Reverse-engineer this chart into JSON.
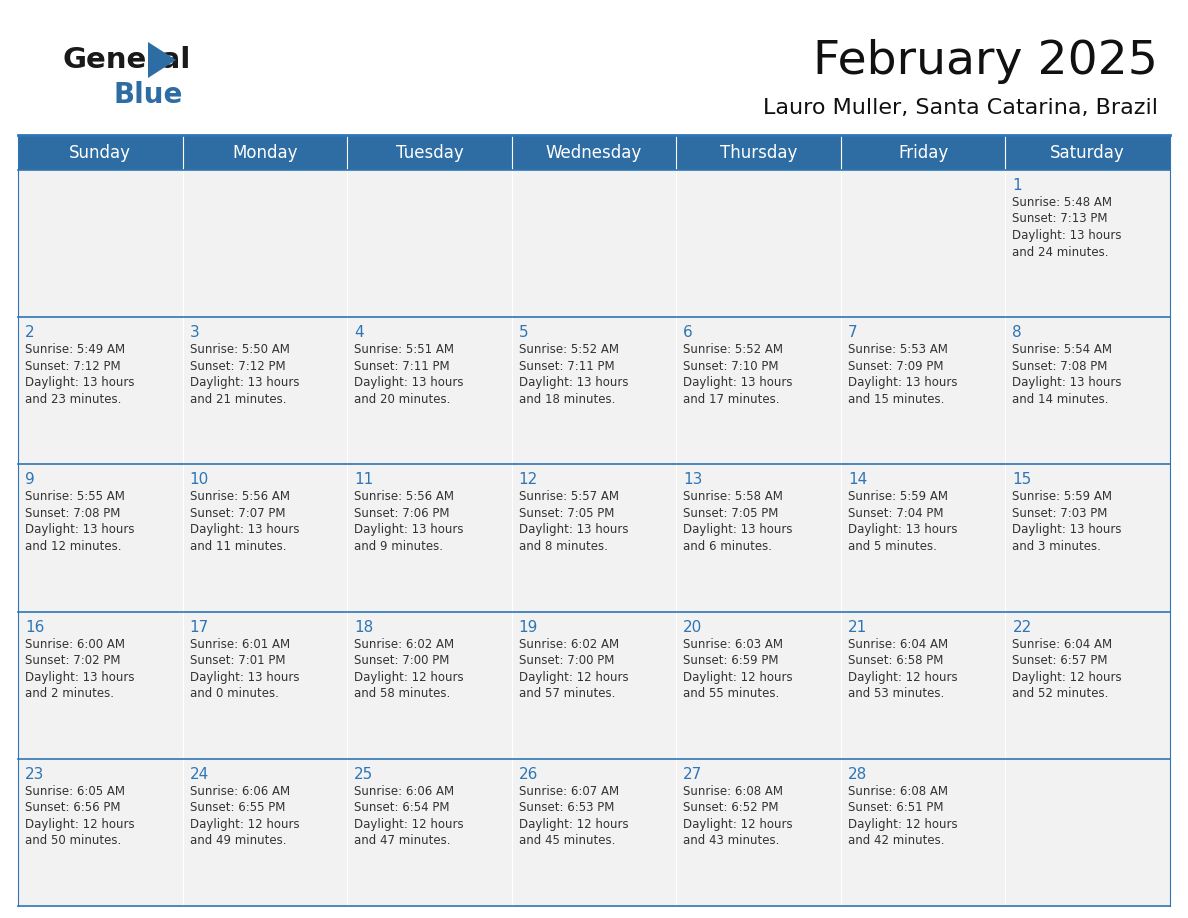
{
  "title": "February 2025",
  "subtitle": "Lauro Muller, Santa Catarina, Brazil",
  "days_of_week": [
    "Sunday",
    "Monday",
    "Tuesday",
    "Wednesday",
    "Thursday",
    "Friday",
    "Saturday"
  ],
  "header_bg": "#2E6DA4",
  "header_text": "#FFFFFF",
  "cell_bg_odd": "#F2F2F2",
  "cell_bg_even": "#FFFFFF",
  "border_color": "#2E75B6",
  "text_color": "#333333",
  "day_num_color": "#2E75B6",
  "title_color": "#111111",
  "calendar_data": [
    [
      null,
      null,
      null,
      null,
      null,
      null,
      {
        "day": "1",
        "sunrise": "5:48 AM",
        "sunset": "7:13 PM",
        "daylight_h": "13 hours",
        "daylight_m": "and 24 minutes."
      }
    ],
    [
      {
        "day": "2",
        "sunrise": "5:49 AM",
        "sunset": "7:12 PM",
        "daylight_h": "13 hours",
        "daylight_m": "and 23 minutes."
      },
      {
        "day": "3",
        "sunrise": "5:50 AM",
        "sunset": "7:12 PM",
        "daylight_h": "13 hours",
        "daylight_m": "and 21 minutes."
      },
      {
        "day": "4",
        "sunrise": "5:51 AM",
        "sunset": "7:11 PM",
        "daylight_h": "13 hours",
        "daylight_m": "and 20 minutes."
      },
      {
        "day": "5",
        "sunrise": "5:52 AM",
        "sunset": "7:11 PM",
        "daylight_h": "13 hours",
        "daylight_m": "and 18 minutes."
      },
      {
        "day": "6",
        "sunrise": "5:52 AM",
        "sunset": "7:10 PM",
        "daylight_h": "13 hours",
        "daylight_m": "and 17 minutes."
      },
      {
        "day": "7",
        "sunrise": "5:53 AM",
        "sunset": "7:09 PM",
        "daylight_h": "13 hours",
        "daylight_m": "and 15 minutes."
      },
      {
        "day": "8",
        "sunrise": "5:54 AM",
        "sunset": "7:08 PM",
        "daylight_h": "13 hours",
        "daylight_m": "and 14 minutes."
      }
    ],
    [
      {
        "day": "9",
        "sunrise": "5:55 AM",
        "sunset": "7:08 PM",
        "daylight_h": "13 hours",
        "daylight_m": "and 12 minutes."
      },
      {
        "day": "10",
        "sunrise": "5:56 AM",
        "sunset": "7:07 PM",
        "daylight_h": "13 hours",
        "daylight_m": "and 11 minutes."
      },
      {
        "day": "11",
        "sunrise": "5:56 AM",
        "sunset": "7:06 PM",
        "daylight_h": "13 hours",
        "daylight_m": "and 9 minutes."
      },
      {
        "day": "12",
        "sunrise": "5:57 AM",
        "sunset": "7:05 PM",
        "daylight_h": "13 hours",
        "daylight_m": "and 8 minutes."
      },
      {
        "day": "13",
        "sunrise": "5:58 AM",
        "sunset": "7:05 PM",
        "daylight_h": "13 hours",
        "daylight_m": "and 6 minutes."
      },
      {
        "day": "14",
        "sunrise": "5:59 AM",
        "sunset": "7:04 PM",
        "daylight_h": "13 hours",
        "daylight_m": "and 5 minutes."
      },
      {
        "day": "15",
        "sunrise": "5:59 AM",
        "sunset": "7:03 PM",
        "daylight_h": "13 hours",
        "daylight_m": "and 3 minutes."
      }
    ],
    [
      {
        "day": "16",
        "sunrise": "6:00 AM",
        "sunset": "7:02 PM",
        "daylight_h": "13 hours",
        "daylight_m": "and 2 minutes."
      },
      {
        "day": "17",
        "sunrise": "6:01 AM",
        "sunset": "7:01 PM",
        "daylight_h": "13 hours",
        "daylight_m": "and 0 minutes."
      },
      {
        "day": "18",
        "sunrise": "6:02 AM",
        "sunset": "7:00 PM",
        "daylight_h": "12 hours",
        "daylight_m": "and 58 minutes."
      },
      {
        "day": "19",
        "sunrise": "6:02 AM",
        "sunset": "7:00 PM",
        "daylight_h": "12 hours",
        "daylight_m": "and 57 minutes."
      },
      {
        "day": "20",
        "sunrise": "6:03 AM",
        "sunset": "6:59 PM",
        "daylight_h": "12 hours",
        "daylight_m": "and 55 minutes."
      },
      {
        "day": "21",
        "sunrise": "6:04 AM",
        "sunset": "6:58 PM",
        "daylight_h": "12 hours",
        "daylight_m": "and 53 minutes."
      },
      {
        "day": "22",
        "sunrise": "6:04 AM",
        "sunset": "6:57 PM",
        "daylight_h": "12 hours",
        "daylight_m": "and 52 minutes."
      }
    ],
    [
      {
        "day": "23",
        "sunrise": "6:05 AM",
        "sunset": "6:56 PM",
        "daylight_h": "12 hours",
        "daylight_m": "and 50 minutes."
      },
      {
        "day": "24",
        "sunrise": "6:06 AM",
        "sunset": "6:55 PM",
        "daylight_h": "12 hours",
        "daylight_m": "and 49 minutes."
      },
      {
        "day": "25",
        "sunrise": "6:06 AM",
        "sunset": "6:54 PM",
        "daylight_h": "12 hours",
        "daylight_m": "and 47 minutes."
      },
      {
        "day": "26",
        "sunrise": "6:07 AM",
        "sunset": "6:53 PM",
        "daylight_h": "12 hours",
        "daylight_m": "and 45 minutes."
      },
      {
        "day": "27",
        "sunrise": "6:08 AM",
        "sunset": "6:52 PM",
        "daylight_h": "12 hours",
        "daylight_m": "and 43 minutes."
      },
      {
        "day": "28",
        "sunrise": "6:08 AM",
        "sunset": "6:51 PM",
        "daylight_h": "12 hours",
        "daylight_m": "and 42 minutes."
      },
      null
    ]
  ],
  "title_fontsize": 34,
  "subtitle_fontsize": 16,
  "header_fontsize": 12,
  "day_number_fontsize": 11,
  "cell_text_fontsize": 8.5
}
